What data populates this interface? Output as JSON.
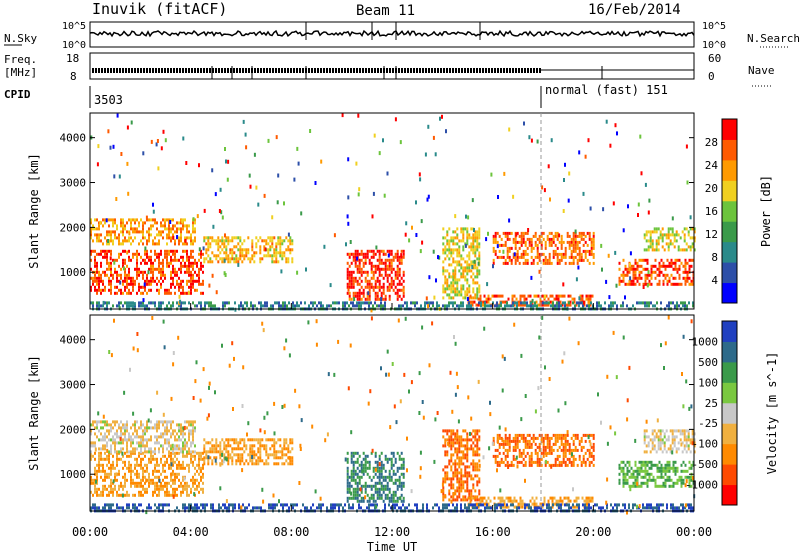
{
  "header": {
    "station": "Inuvik (fitACF)",
    "beam": "Beam 11",
    "date": "16/Feb/2014"
  },
  "panels": {
    "nsky_label": "N.Sky",
    "nsearch_label": "N.Search",
    "freq_label_line1": "Freq.",
    "freq_label_line2": "[MHz]",
    "nave_label": "Nave",
    "cpid_label": "CPID",
    "left_ticks_top": [
      "10^5",
      "10^0"
    ],
    "right_ticks_top": [
      "10^5",
      "10^0"
    ],
    "left_ticks_freq": [
      "18",
      "8"
    ],
    "right_ticks_nave": [
      "60",
      "0"
    ],
    "cpid_entries": [
      {
        "text": "3503"
      },
      {
        "text": "normal (fast) 151"
      }
    ]
  },
  "chart_data": [
    {
      "type": "heatmap",
      "title": "",
      "xlabel": "Time UT",
      "ylabel": "Slant Range [km]",
      "x_ticks": [
        "00:00",
        "04:00",
        "08:00",
        "12:00",
        "16:00",
        "20:00",
        "00:00"
      ],
      "x_range_hours": [
        0,
        24
      ],
      "y_ticks": [
        1000,
        2000,
        3000,
        4000
      ],
      "y_range_km": [
        180,
        4550
      ],
      "colorbar_label": "Power [dB]",
      "colorbar_ticks": [
        "4",
        "8",
        "12",
        "16",
        "20",
        "24",
        "28"
      ],
      "colorbar_range": [
        0,
        30
      ],
      "colorbar_colors": [
        "#0000ff",
        "#2d4fa8",
        "#2a8a8a",
        "#3a9a4a",
        "#6cc43c",
        "#f0d020",
        "#ff9a00",
        "#ff5a00",
        "#ff0000"
      ],
      "regions": [
        {
          "t": [
            0.0,
            4.5
          ],
          "r": [
            500,
            1500
          ],
          "level": 26
        },
        {
          "t": [
            0.0,
            4.2
          ],
          "r": [
            1600,
            2200
          ],
          "level": 22
        },
        {
          "t": [
            4.5,
            8.0
          ],
          "r": [
            1200,
            1800
          ],
          "level": 20
        },
        {
          "t": [
            10.2,
            12.5
          ],
          "r": [
            400,
            1500
          ],
          "level": 27
        },
        {
          "t": [
            14.0,
            15.5
          ],
          "r": [
            400,
            2000
          ],
          "level": 18
        },
        {
          "t": [
            16.0,
            20.0
          ],
          "r": [
            1200,
            1900
          ],
          "level": 24
        },
        {
          "t": [
            21.0,
            24.0
          ],
          "r": [
            700,
            1300
          ],
          "level": 26
        },
        {
          "t": [
            22.0,
            24.0
          ],
          "r": [
            1500,
            2000
          ],
          "level": 18
        },
        {
          "t": [
            15.0,
            20.0
          ],
          "r": [
            250,
            500
          ],
          "level": 25
        },
        {
          "t": [
            0.0,
            24.0
          ],
          "r": [
            180,
            350
          ],
          "level": 8
        }
      ]
    },
    {
      "type": "heatmap",
      "title": "",
      "xlabel": "Time UT",
      "ylabel": "Slant Range [km]",
      "x_ticks": [
        "00:00",
        "04:00",
        "08:00",
        "12:00",
        "16:00",
        "20:00",
        "00:00"
      ],
      "x_range_hours": [
        0,
        24
      ],
      "y_ticks": [
        1000,
        2000,
        3000,
        4000
      ],
      "y_range_km": [
        180,
        4550
      ],
      "colorbar_label": "Velocity [m s^-1]",
      "colorbar_ticks": [
        "1000",
        "500",
        "100",
        "25",
        "-25",
        "-100",
        "-500",
        "-1000"
      ],
      "colorbar_colors": [
        "#2040c0",
        "#2d6a8a",
        "#3a9a4a",
        "#7ac840",
        "#c8c8c8",
        "#f0b040",
        "#ff8a00",
        "#ff4a00",
        "#ff0000"
      ],
      "regions": [
        {
          "t": [
            0.0,
            4.5
          ],
          "r": [
            500,
            1500
          ],
          "level": -100
        },
        {
          "t": [
            0.0,
            4.2
          ],
          "r": [
            1500,
            2200
          ],
          "level": -25
        },
        {
          "t": [
            4.5,
            8.0
          ],
          "r": [
            1200,
            1800
          ],
          "level": -100
        },
        {
          "t": [
            10.2,
            12.5
          ],
          "r": [
            400,
            1500
          ],
          "level": 500
        },
        {
          "t": [
            14.0,
            15.5
          ],
          "r": [
            400,
            2000
          ],
          "level": -500
        },
        {
          "t": [
            16.0,
            20.0
          ],
          "r": [
            1200,
            1900
          ],
          "level": -500
        },
        {
          "t": [
            21.0,
            24.0
          ],
          "r": [
            700,
            1300
          ],
          "level": 100
        },
        {
          "t": [
            22.0,
            24.0
          ],
          "r": [
            1500,
            2000
          ],
          "level": -25
        },
        {
          "t": [
            15.0,
            20.0
          ],
          "r": [
            250,
            500
          ],
          "level": -100
        },
        {
          "t": [
            0.0,
            24.0
          ],
          "r": [
            180,
            350
          ],
          "level": 1000
        }
      ]
    }
  ]
}
